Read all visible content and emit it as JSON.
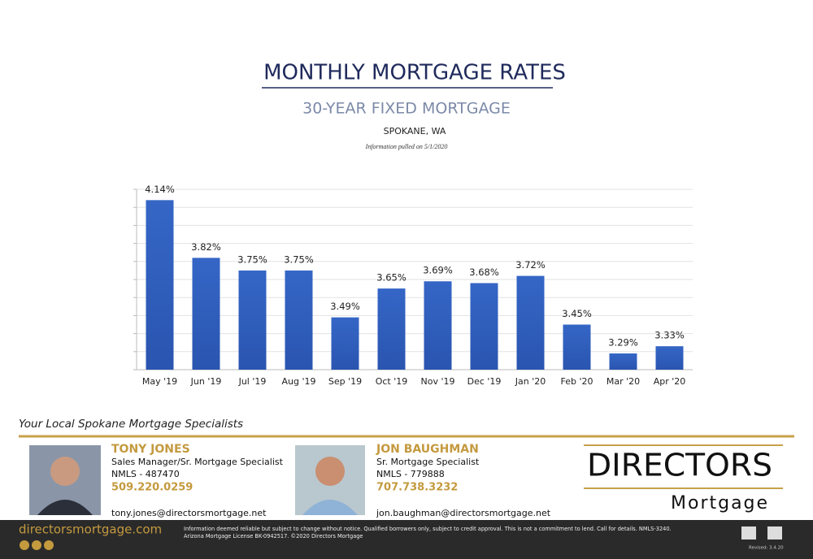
{
  "chart_data": {
    "type": "bar",
    "title": "MONTHLY MORTGAGE RATES",
    "subtitle": "30-YEAR FIXED MORTGAGE",
    "location": "SPOKANE, WA",
    "note": "Information pulled on 5/1/2020",
    "categories": [
      "May '19",
      "Jun '19",
      "Jul '19",
      "Aug '19",
      "Sep '19",
      "Oct '19",
      "Nov '19",
      "Dec '19",
      "Jan '20",
      "Feb '20",
      "Mar '20",
      "Apr '20"
    ],
    "values": [
      4.14,
      3.82,
      3.75,
      3.75,
      3.49,
      3.65,
      3.69,
      3.68,
      3.72,
      3.45,
      3.29,
      3.33
    ],
    "value_labels": [
      "4.14%",
      "3.82%",
      "3.75%",
      "3.75%",
      "3.49%",
      "3.65%",
      "3.69%",
      "3.68%",
      "3.72%",
      "3.45%",
      "3.29%",
      "3.33%"
    ],
    "color": "#3566c6",
    "ylim": [
      3.2,
      4.2
    ],
    "yticks": [
      3.2,
      3.3,
      3.4,
      3.5,
      3.6,
      3.7,
      3.8,
      3.9,
      4.0,
      4.1,
      4.2
    ],
    "grid": true
  },
  "footer": {
    "tagline": "Your Local Spokane Mortgage Specialists",
    "agents": [
      {
        "name": "TONY JONES",
        "title": "Sales Manager/Sr. Mortgage Specialist",
        "nmls": "NMLS - 487470",
        "phone": "509.220.0259",
        "email": "tony.jones@directorsmortgage.net"
      },
      {
        "name": "JON BAUGHMAN",
        "title": "Sr. Mortgage Specialist",
        "nmls": "NMLS - 779888",
        "phone": "707.738.3232",
        "email": "jon.baughman@directorsmortgage.net"
      }
    ],
    "logo": {
      "name": "DIRECTORS",
      "sub": "Mortgage"
    },
    "website": "directorsmortgage.com",
    "disclaimer": [
      "Information deemed reliable but subject to change without notice. Qualified borrowers only, subject to credit approval. This is not a commitment to lend. Call for details. NMLS-3240.",
      "Arizona Mortgage License BK-0942517. ©2020 Directors Mortgage"
    ],
    "revised": "Revised: 3.4.20"
  }
}
